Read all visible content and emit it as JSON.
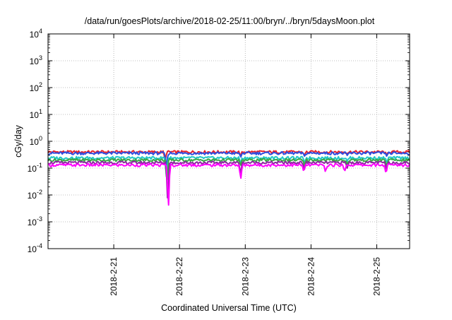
{
  "chart_data": {
    "type": "line",
    "title": "/data/run/goesPlots/archive/2018-02-25/11:00/bryn/../bryn/5daysMoon.plot",
    "xlabel": "Coordinated Universal Time (UTC)",
    "ylabel": "cGy/day",
    "yscale": "log",
    "ylim": [
      0.0001,
      10000
    ],
    "xlim_days": [
      20.0,
      25.5
    ],
    "grid": true,
    "y_ticks": [
      {
        "value": 0.0001,
        "base": "10",
        "exp": "-4"
      },
      {
        "value": 0.001,
        "base": "10",
        "exp": "-3"
      },
      {
        "value": 0.01,
        "base": "10",
        "exp": "-2"
      },
      {
        "value": 0.1,
        "base": "10",
        "exp": "-1"
      },
      {
        "value": 1,
        "base": "10",
        "exp": "0"
      },
      {
        "value": 10,
        "base": "10",
        "exp": "1"
      },
      {
        "value": 100,
        "base": "10",
        "exp": "2"
      },
      {
        "value": 1000,
        "base": "10",
        "exp": "3"
      },
      {
        "value": 10000,
        "base": "10",
        "exp": "4"
      }
    ],
    "x_ticks": [
      {
        "value": 21,
        "label": "2018-2-21"
      },
      {
        "value": 22,
        "label": "2018-2-22"
      },
      {
        "value": 23,
        "label": "2018-2-23"
      },
      {
        "value": 24,
        "label": "2018-2-24"
      },
      {
        "value": 25,
        "label": "2018-2-25"
      }
    ],
    "series": [
      {
        "color": "#e8202a",
        "base": 0.4,
        "dips": [
          [
            21.78,
            0.2
          ],
          [
            22.93,
            0.3
          ],
          [
            23.9,
            0.3
          ],
          [
            24.55,
            0.35
          ],
          [
            25.15,
            0.3
          ]
        ]
      },
      {
        "color": "#2d4de0",
        "base": 0.36,
        "dips": [
          [
            21.8,
            0.1
          ],
          [
            22.93,
            0.25
          ],
          [
            23.9,
            0.28
          ],
          [
            24.55,
            0.3
          ],
          [
            25.15,
            0.28
          ]
        ]
      },
      {
        "color": "#22c7c7",
        "base": 0.24,
        "dips": [
          [
            21.8,
            0.05
          ],
          [
            22.93,
            0.15
          ],
          [
            23.9,
            0.16
          ],
          [
            24.55,
            0.18
          ],
          [
            25.15,
            0.17
          ]
        ]
      },
      {
        "color": "#3aa845",
        "base": 0.2,
        "dips": [
          [
            21.81,
            0.02
          ],
          [
            22.93,
            0.12
          ],
          [
            23.9,
            0.12
          ],
          [
            24.55,
            0.14
          ],
          [
            25.15,
            0.13
          ]
        ]
      },
      {
        "color": "#8a2a9e",
        "base": 0.16,
        "dips": [
          [
            21.82,
            0.005
          ],
          [
            22.93,
            0.06
          ],
          [
            23.9,
            0.09
          ],
          [
            24.55,
            0.1
          ],
          [
            25.15,
            0.09
          ]
        ]
      },
      {
        "color": "#ff00ff",
        "base": 0.13,
        "dips": [
          [
            21.83,
            0.0025
          ],
          [
            22.93,
            0.035
          ],
          [
            23.89,
            0.07
          ],
          [
            24.22,
            0.07
          ],
          [
            24.51,
            0.07
          ],
          [
            25.14,
            0.06
          ]
        ]
      }
    ]
  }
}
